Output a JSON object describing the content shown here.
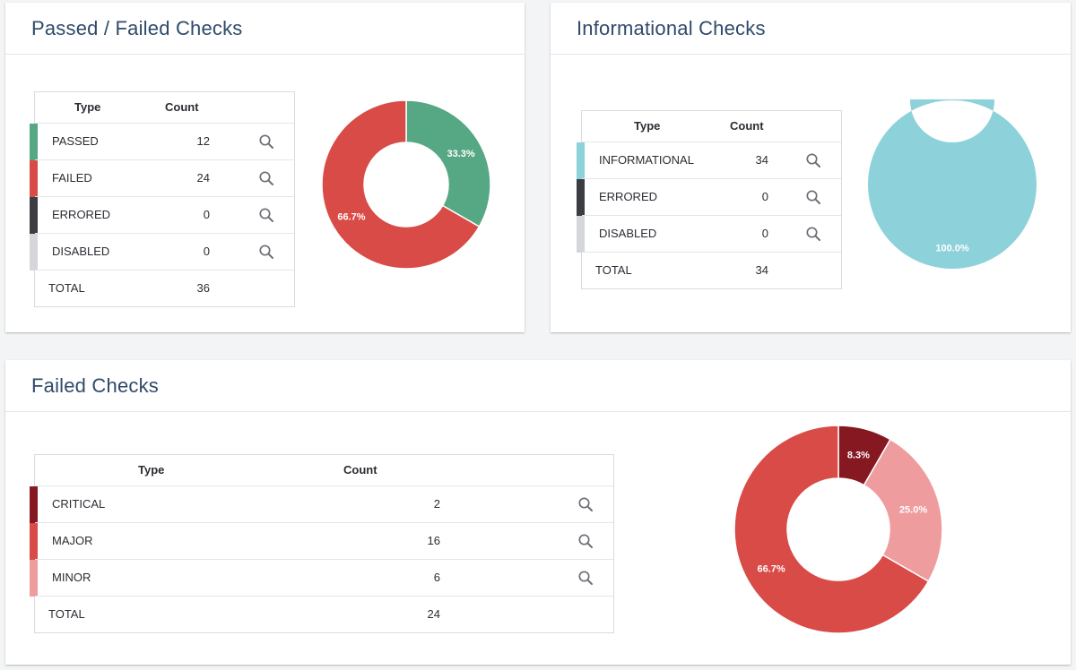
{
  "colors": {
    "passed": "#56a784",
    "failed": "#d84b46",
    "errored": "#3c3d42",
    "disabled": "#d5d6da",
    "informational": "#8dd2da",
    "critical": "#861821",
    "major": "#d84b46",
    "minor": "#ef9c9f",
    "title": "#2f4a6b"
  },
  "passed_failed": {
    "title": "Passed / Failed Checks",
    "col_type": "Type",
    "col_count": "Count",
    "rows": [
      {
        "type": "PASSED",
        "count": "12",
        "color": "#56a784"
      },
      {
        "type": "FAILED",
        "count": "24",
        "color": "#d84b46"
      },
      {
        "type": "ERRORED",
        "count": "0",
        "color": "#3c3d42"
      },
      {
        "type": "DISABLED",
        "count": "0",
        "color": "#d5d6da"
      }
    ],
    "total_label": "TOTAL",
    "total_count": "36"
  },
  "informational": {
    "title": "Informational Checks",
    "col_type": "Type",
    "col_count": "Count",
    "rows": [
      {
        "type": "INFORMATIONAL",
        "count": "34",
        "color": "#8dd2da"
      },
      {
        "type": "ERRORED",
        "count": "0",
        "color": "#3c3d42"
      },
      {
        "type": "DISABLED",
        "count": "0",
        "color": "#d5d6da"
      }
    ],
    "total_label": "TOTAL",
    "total_count": "34"
  },
  "failed": {
    "title": "Failed Checks",
    "col_type": "Type",
    "col_count": "Count",
    "rows": [
      {
        "type": "CRITICAL",
        "count": "2",
        "color": "#861821"
      },
      {
        "type": "MAJOR",
        "count": "16",
        "color": "#d84b46"
      },
      {
        "type": "MINOR",
        "count": "6",
        "color": "#ef9c9f"
      }
    ],
    "total_label": "TOTAL",
    "total_count": "24"
  },
  "chart_data": [
    {
      "type": "pie",
      "categories": [
        "PASSED",
        "FAILED"
      ],
      "values": [
        12,
        24
      ],
      "labels": [
        "33.3%",
        "66.7%"
      ],
      "colors": [
        "#56a784",
        "#d84b46"
      ]
    },
    {
      "type": "pie",
      "categories": [
        "INFORMATIONAL"
      ],
      "values": [
        34
      ],
      "labels": [
        "100.0%"
      ],
      "colors": [
        "#8dd2da"
      ]
    },
    {
      "type": "pie",
      "categories": [
        "CRITICAL",
        "MINOR",
        "MAJOR"
      ],
      "values": [
        2,
        6,
        16
      ],
      "labels": [
        "8.3%",
        "25.0%",
        "66.7%"
      ],
      "colors": [
        "#861821",
        "#ef9c9f",
        "#d84b46"
      ]
    }
  ]
}
